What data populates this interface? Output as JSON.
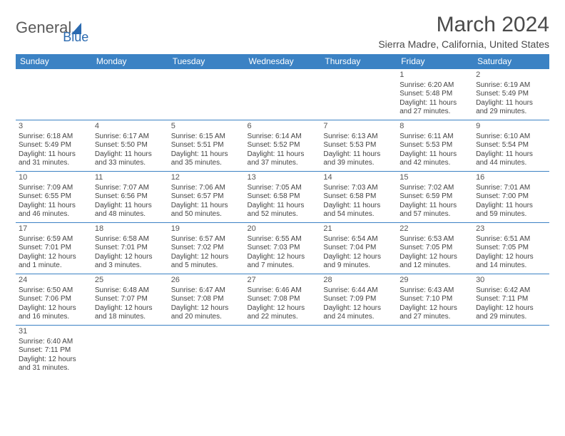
{
  "logo": {
    "text1": "General",
    "text2": "Blue"
  },
  "title": "March 2024",
  "location": "Sierra Madre, California, United States",
  "colors": {
    "header_bg": "#3b82c4",
    "header_text": "#ffffff",
    "border": "#3b82c4",
    "text": "#444444",
    "title": "#4a4a4a",
    "logo_blue": "#2a6ab0"
  },
  "day_headers": [
    "Sunday",
    "Monday",
    "Tuesday",
    "Wednesday",
    "Thursday",
    "Friday",
    "Saturday"
  ],
  "weeks": [
    [
      null,
      null,
      null,
      null,
      null,
      {
        "n": "1",
        "sr": "Sunrise: 6:20 AM",
        "ss": "Sunset: 5:48 PM",
        "dl": "Daylight: 11 hours and 27 minutes."
      },
      {
        "n": "2",
        "sr": "Sunrise: 6:19 AM",
        "ss": "Sunset: 5:49 PM",
        "dl": "Daylight: 11 hours and 29 minutes."
      }
    ],
    [
      {
        "n": "3",
        "sr": "Sunrise: 6:18 AM",
        "ss": "Sunset: 5:49 PM",
        "dl": "Daylight: 11 hours and 31 minutes."
      },
      {
        "n": "4",
        "sr": "Sunrise: 6:17 AM",
        "ss": "Sunset: 5:50 PM",
        "dl": "Daylight: 11 hours and 33 minutes."
      },
      {
        "n": "5",
        "sr": "Sunrise: 6:15 AM",
        "ss": "Sunset: 5:51 PM",
        "dl": "Daylight: 11 hours and 35 minutes."
      },
      {
        "n": "6",
        "sr": "Sunrise: 6:14 AM",
        "ss": "Sunset: 5:52 PM",
        "dl": "Daylight: 11 hours and 37 minutes."
      },
      {
        "n": "7",
        "sr": "Sunrise: 6:13 AM",
        "ss": "Sunset: 5:53 PM",
        "dl": "Daylight: 11 hours and 39 minutes."
      },
      {
        "n": "8",
        "sr": "Sunrise: 6:11 AM",
        "ss": "Sunset: 5:53 PM",
        "dl": "Daylight: 11 hours and 42 minutes."
      },
      {
        "n": "9",
        "sr": "Sunrise: 6:10 AM",
        "ss": "Sunset: 5:54 PM",
        "dl": "Daylight: 11 hours and 44 minutes."
      }
    ],
    [
      {
        "n": "10",
        "sr": "Sunrise: 7:09 AM",
        "ss": "Sunset: 6:55 PM",
        "dl": "Daylight: 11 hours and 46 minutes."
      },
      {
        "n": "11",
        "sr": "Sunrise: 7:07 AM",
        "ss": "Sunset: 6:56 PM",
        "dl": "Daylight: 11 hours and 48 minutes."
      },
      {
        "n": "12",
        "sr": "Sunrise: 7:06 AM",
        "ss": "Sunset: 6:57 PM",
        "dl": "Daylight: 11 hours and 50 minutes."
      },
      {
        "n": "13",
        "sr": "Sunrise: 7:05 AM",
        "ss": "Sunset: 6:58 PM",
        "dl": "Daylight: 11 hours and 52 minutes."
      },
      {
        "n": "14",
        "sr": "Sunrise: 7:03 AM",
        "ss": "Sunset: 6:58 PM",
        "dl": "Daylight: 11 hours and 54 minutes."
      },
      {
        "n": "15",
        "sr": "Sunrise: 7:02 AM",
        "ss": "Sunset: 6:59 PM",
        "dl": "Daylight: 11 hours and 57 minutes."
      },
      {
        "n": "16",
        "sr": "Sunrise: 7:01 AM",
        "ss": "Sunset: 7:00 PM",
        "dl": "Daylight: 11 hours and 59 minutes."
      }
    ],
    [
      {
        "n": "17",
        "sr": "Sunrise: 6:59 AM",
        "ss": "Sunset: 7:01 PM",
        "dl": "Daylight: 12 hours and 1 minute."
      },
      {
        "n": "18",
        "sr": "Sunrise: 6:58 AM",
        "ss": "Sunset: 7:01 PM",
        "dl": "Daylight: 12 hours and 3 minutes."
      },
      {
        "n": "19",
        "sr": "Sunrise: 6:57 AM",
        "ss": "Sunset: 7:02 PM",
        "dl": "Daylight: 12 hours and 5 minutes."
      },
      {
        "n": "20",
        "sr": "Sunrise: 6:55 AM",
        "ss": "Sunset: 7:03 PM",
        "dl": "Daylight: 12 hours and 7 minutes."
      },
      {
        "n": "21",
        "sr": "Sunrise: 6:54 AM",
        "ss": "Sunset: 7:04 PM",
        "dl": "Daylight: 12 hours and 9 minutes."
      },
      {
        "n": "22",
        "sr": "Sunrise: 6:53 AM",
        "ss": "Sunset: 7:05 PM",
        "dl": "Daylight: 12 hours and 12 minutes."
      },
      {
        "n": "23",
        "sr": "Sunrise: 6:51 AM",
        "ss": "Sunset: 7:05 PM",
        "dl": "Daylight: 12 hours and 14 minutes."
      }
    ],
    [
      {
        "n": "24",
        "sr": "Sunrise: 6:50 AM",
        "ss": "Sunset: 7:06 PM",
        "dl": "Daylight: 12 hours and 16 minutes."
      },
      {
        "n": "25",
        "sr": "Sunrise: 6:48 AM",
        "ss": "Sunset: 7:07 PM",
        "dl": "Daylight: 12 hours and 18 minutes."
      },
      {
        "n": "26",
        "sr": "Sunrise: 6:47 AM",
        "ss": "Sunset: 7:08 PM",
        "dl": "Daylight: 12 hours and 20 minutes."
      },
      {
        "n": "27",
        "sr": "Sunrise: 6:46 AM",
        "ss": "Sunset: 7:08 PM",
        "dl": "Daylight: 12 hours and 22 minutes."
      },
      {
        "n": "28",
        "sr": "Sunrise: 6:44 AM",
        "ss": "Sunset: 7:09 PM",
        "dl": "Daylight: 12 hours and 24 minutes."
      },
      {
        "n": "29",
        "sr": "Sunrise: 6:43 AM",
        "ss": "Sunset: 7:10 PM",
        "dl": "Daylight: 12 hours and 27 minutes."
      },
      {
        "n": "30",
        "sr": "Sunrise: 6:42 AM",
        "ss": "Sunset: 7:11 PM",
        "dl": "Daylight: 12 hours and 29 minutes."
      }
    ],
    [
      {
        "n": "31",
        "sr": "Sunrise: 6:40 AM",
        "ss": "Sunset: 7:11 PM",
        "dl": "Daylight: 12 hours and 31 minutes."
      },
      null,
      null,
      null,
      null,
      null,
      null
    ]
  ]
}
